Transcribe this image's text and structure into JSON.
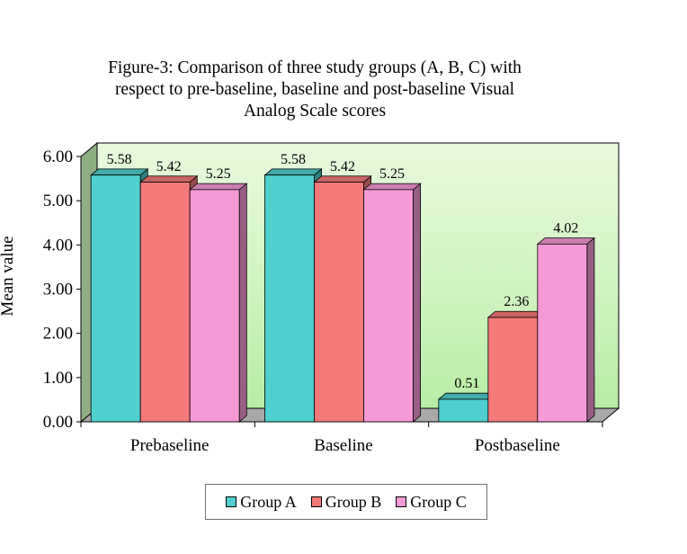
{
  "chart_data": {
    "type": "bar",
    "title": "Figure-3: Comparison of three study groups (A, B, C) with respect to pre-baseline, baseline and post-baseline Visual Analog Scale scores",
    "title_lines": [
      "Figure-3: Comparison of three study groups (A, B, C) with",
      "respect to pre-baseline, baseline and post-baseline Visual",
      "Analog Scale scores"
    ],
    "xlabel": "",
    "ylabel": "Mean value",
    "ylim": [
      0,
      6
    ],
    "yticks": [
      "0.00",
      "1.00",
      "2.00",
      "3.00",
      "4.00",
      "5.00",
      "6.00"
    ],
    "categories": [
      "Prebaseline",
      "Baseline",
      "Postbaseline"
    ],
    "series": [
      {
        "name": "Group A",
        "color": "#4fcfcf",
        "values": [
          5.58,
          5.58,
          0.51
        ],
        "labels": [
          "5.58",
          "5.58",
          "0.51"
        ]
      },
      {
        "name": "Group B",
        "color": "#f47a7a",
        "values": [
          5.42,
          5.42,
          2.36
        ],
        "labels": [
          "5.42",
          "5.42",
          "2.36"
        ]
      },
      {
        "name": "Group C",
        "color": "#f59ad6",
        "values": [
          5.25,
          5.25,
          4.02
        ],
        "labels": [
          "5.25",
          "5.25",
          "4.02"
        ]
      }
    ],
    "grid": false,
    "legend_position": "bottom",
    "style": "3d-bar"
  }
}
